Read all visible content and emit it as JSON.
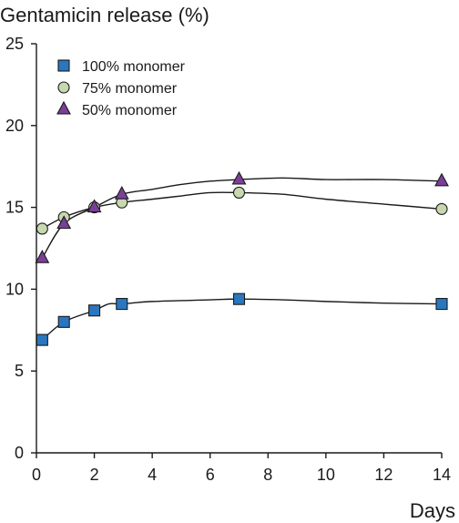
{
  "chart_data": {
    "type": "line",
    "title": "Gentamicin release (%)",
    "xlabel": "Days",
    "ylabel": "",
    "xlim": [
      0,
      14
    ],
    "ylim": [
      0,
      25
    ],
    "xticks": [
      0,
      2,
      4,
      6,
      8,
      10,
      12,
      14
    ],
    "yticks": [
      0,
      5,
      10,
      15,
      20,
      25
    ],
    "grid": false,
    "legend_position": "top-left",
    "series": [
      {
        "name": "100% monomer",
        "marker": "square",
        "color": "#2a77c0",
        "x": [
          0.2,
          0.95,
          2,
          2.95,
          7,
          14
        ],
        "y": [
          6.9,
          8.0,
          8.7,
          9.1,
          9.4,
          9.1
        ],
        "curve": [
          [
            0.2,
            6.9
          ],
          [
            0.95,
            8.0
          ],
          [
            2,
            8.7
          ],
          [
            2.5,
            9.1
          ],
          [
            2.95,
            9.1
          ],
          [
            4,
            9.25
          ],
          [
            6,
            9.35
          ],
          [
            7,
            9.4
          ],
          [
            8.5,
            9.35
          ],
          [
            10,
            9.25
          ],
          [
            12,
            9.15
          ],
          [
            14,
            9.1
          ]
        ]
      },
      {
        "name": "75% monomer",
        "marker": "circle",
        "color": "#c7d7b0",
        "x": [
          0.2,
          0.95,
          2,
          2.95,
          7,
          14
        ],
        "y": [
          13.7,
          14.4,
          15.0,
          15.3,
          15.9,
          14.9
        ],
        "curve": [
          [
            0.2,
            13.7
          ],
          [
            0.95,
            14.4
          ],
          [
            2,
            15.0
          ],
          [
            2.95,
            15.3
          ],
          [
            4,
            15.5
          ],
          [
            5,
            15.7
          ],
          [
            6,
            15.9
          ],
          [
            7,
            15.9
          ],
          [
            8.5,
            15.8
          ],
          [
            10,
            15.5
          ],
          [
            12,
            15.2
          ],
          [
            14,
            14.9
          ]
        ]
      },
      {
        "name": "50% monomer",
        "marker": "triangle",
        "color": "#7b3f98",
        "x": [
          0.2,
          0.95,
          2,
          2.95,
          7,
          14
        ],
        "y": [
          11.9,
          14.0,
          15.0,
          15.8,
          16.7,
          16.6
        ],
        "curve": [
          [
            0.2,
            11.9
          ],
          [
            0.95,
            14.0
          ],
          [
            2,
            15.0
          ],
          [
            2.95,
            15.8
          ],
          [
            4,
            16.1
          ],
          [
            5,
            16.4
          ],
          [
            6,
            16.6
          ],
          [
            7,
            16.7
          ],
          [
            8.5,
            16.8
          ],
          [
            10,
            16.7
          ],
          [
            12,
            16.7
          ],
          [
            14,
            16.6
          ]
        ]
      }
    ]
  }
}
